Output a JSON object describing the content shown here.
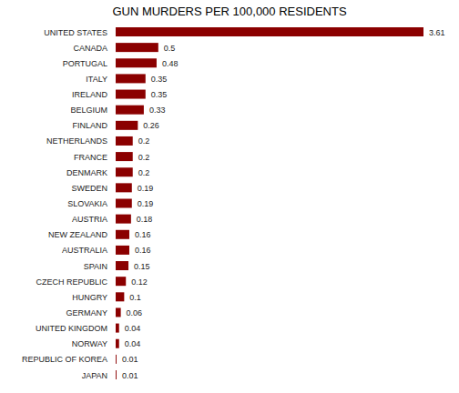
{
  "chart_data": {
    "type": "bar",
    "orientation": "horizontal",
    "title": "GUN MURDERS PER 100,000 RESIDENTS",
    "categories": [
      "UNITED STATES",
      "CANADA",
      "PORTUGAL",
      "ITALY",
      "IRELAND",
      "BELGIUM",
      "FINLAND",
      "NETHERLANDS",
      "FRANCE",
      "DENMARK",
      "SWEDEN",
      "SLOVAKIA",
      "AUSTRIA",
      "NEW ZEALAND",
      "AUSTRALIA",
      "SPAIN",
      "CZECH REPUBLIC",
      "HUNGRY",
      "GERMANY",
      "UNITED KINGDOM",
      "NORWAY",
      "REPUBLIC OF KOREA",
      "JAPAN"
    ],
    "values": [
      3.61,
      0.5,
      0.48,
      0.35,
      0.35,
      0.33,
      0.26,
      0.2,
      0.2,
      0.2,
      0.19,
      0.19,
      0.18,
      0.16,
      0.16,
      0.15,
      0.12,
      0.1,
      0.06,
      0.04,
      0.04,
      0.01,
      0.01
    ],
    "color": "#8b0000",
    "ylim": [
      0,
      3.61
    ],
    "data_labels": true,
    "tick_labels": "x",
    "grid": false
  }
}
